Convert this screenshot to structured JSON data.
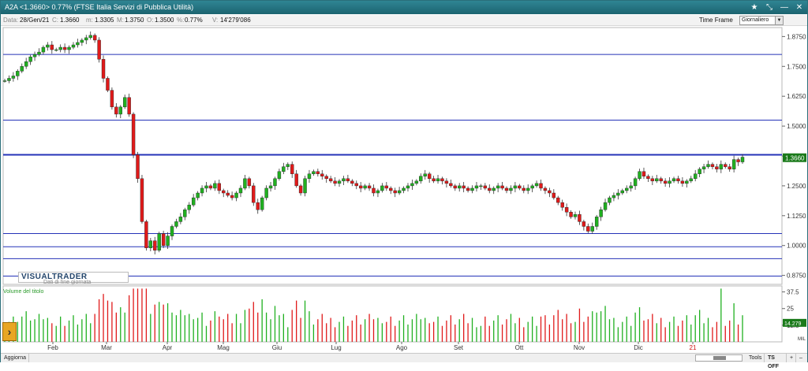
{
  "title": {
    "text": "A2A  <1.3660>  0.77%   (FTSE Italia Servizi di Pubblica Utilità)",
    "ctrl_star": "★",
    "ctrl_pin": "⤡",
    "ctrl_min": "—",
    "ctrl_close": "✕"
  },
  "info": {
    "data_k": "Data:",
    "data_v": "28/Gen/21",
    "c_k": "C:",
    "c_v": "1.3660",
    "m_k": "m:",
    "m_v": "1.3305",
    "M_k": "M:",
    "M_v": "1.3750",
    "o_k": "O:",
    "o_v": "1.3500",
    "pct_k": "%:",
    "pct_v": "0.77%",
    "vol_k": "V:",
    "vol_v": "14'279'086",
    "timeframe_label": "Time Frame",
    "timeframe_value": "Giornaliero"
  },
  "logo": {
    "text": "VISUALTRADER",
    "sub": "Dati di fine giornata"
  },
  "volume_title": "Volume del titolo",
  "bottom": {
    "refresh": "Aggiorna",
    "tools": "Tools",
    "ts": "TS OFF",
    "plus": "+",
    "minus": "–"
  },
  "colors": {
    "up": "#20b020",
    "down": "#e01a1a",
    "hline": "#2533b8",
    "accent": "#e8a623"
  },
  "chart_data": {
    "type": "candlestick",
    "title": "",
    "price_ticks": [
      "1.8750",
      "1.7500",
      "1.6250",
      "1.5000",
      "1.3750",
      "1.2500",
      "1.1250",
      "1.0000",
      "0.8750"
    ],
    "ylim": [
      0.8375,
      1.9125
    ],
    "last_price_label": "1.3660",
    "horizontal_levels": [
      1.8,
      1.525,
      1.38,
      1.05,
      0.995,
      0.945,
      0.872
    ],
    "x_labels": [
      "Feb",
      "Mar",
      "Apr",
      "Mag",
      "Giu",
      "Lug",
      "Ago",
      "Set",
      "Ott",
      "Nov",
      "Dic",
      "21"
    ],
    "price_series": [
      1.69,
      1.7,
      1.71,
      1.73,
      1.75,
      1.77,
      1.79,
      1.8,
      1.81,
      1.83,
      1.84,
      1.82,
      1.82,
      1.83,
      1.82,
      1.83,
      1.84,
      1.85,
      1.86,
      1.87,
      1.88,
      1.86,
      1.78,
      1.7,
      1.65,
      1.58,
      1.55,
      1.58,
      1.62,
      1.55,
      1.38,
      1.28,
      1.1,
      0.99,
      1.02,
      0.98,
      1.05,
      1.0,
      1.04,
      1.08,
      1.1,
      1.12,
      1.15,
      1.17,
      1.2,
      1.22,
      1.24,
      1.25,
      1.24,
      1.26,
      1.23,
      1.22,
      1.21,
      1.2,
      1.22,
      1.24,
      1.28,
      1.25,
      1.18,
      1.15,
      1.2,
      1.24,
      1.25,
      1.28,
      1.31,
      1.33,
      1.34,
      1.3,
      1.25,
      1.22,
      1.28,
      1.3,
      1.31,
      1.3,
      1.29,
      1.28,
      1.27,
      1.26,
      1.27,
      1.28,
      1.27,
      1.26,
      1.25,
      1.24,
      1.25,
      1.24,
      1.22,
      1.23,
      1.25,
      1.24,
      1.23,
      1.22,
      1.23,
      1.24,
      1.25,
      1.26,
      1.27,
      1.29,
      1.3,
      1.28,
      1.27,
      1.28,
      1.27,
      1.26,
      1.25,
      1.24,
      1.25,
      1.24,
      1.23,
      1.24,
      1.25,
      1.25,
      1.24,
      1.23,
      1.24,
      1.25,
      1.24,
      1.23,
      1.24,
      1.25,
      1.24,
      1.23,
      1.24,
      1.25,
      1.26,
      1.24,
      1.23,
      1.22,
      1.2,
      1.18,
      1.16,
      1.14,
      1.12,
      1.13,
      1.1,
      1.08,
      1.06,
      1.08,
      1.12,
      1.15,
      1.18,
      1.2,
      1.21,
      1.22,
      1.23,
      1.24,
      1.25,
      1.28,
      1.31,
      1.29,
      1.28,
      1.27,
      1.28,
      1.27,
      1.26,
      1.27,
      1.28,
      1.27,
      1.26,
      1.27,
      1.28,
      1.3,
      1.32,
      1.33,
      1.34,
      1.33,
      1.32,
      1.34,
      1.33,
      1.32,
      1.36,
      1.35,
      1.37
    ],
    "volume_ticks": [
      "37.5",
      "25",
      "12.5"
    ],
    "volume_unit_label": "MIL",
    "volume_last_label": "14.279",
    "volume_ylim": [
      0,
      42
    ]
  }
}
